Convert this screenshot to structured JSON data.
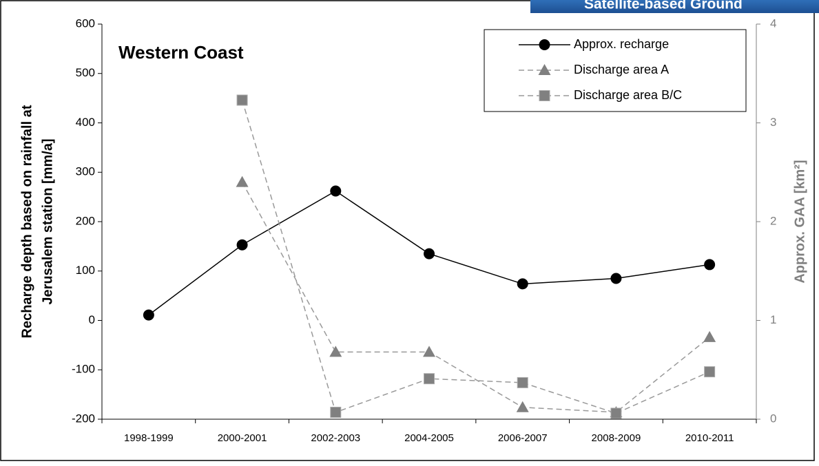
{
  "banner": "Satellite-based Ground",
  "chart_data": {
    "type": "line",
    "title": "Western Coast",
    "ylabel": [
      "Recharge depth based on rainfall at",
      "Jerusalem station [mm/a]"
    ],
    "y2label": "Approx. GAA [km²]",
    "categories": [
      "1998-1999",
      "2000-2001",
      "2002-2003",
      "2004-2005",
      "2006-2007",
      "2008-2009",
      "2010-2011"
    ],
    "series": [
      {
        "name": "Approx. recharge",
        "color": "#000000",
        "marker": "circle",
        "dashed": false,
        "values": [
          11,
          153,
          262,
          135,
          74,
          85,
          113
        ]
      },
      {
        "name": "Discharge area A",
        "color": "#808080",
        "marker": "triangle",
        "dashed": true,
        "axis": "y2",
        "values": [
          null,
          2.4,
          0.68,
          0.68,
          0.12,
          0.07,
          0.83
        ]
      },
      {
        "name": "Discharge area B/C",
        "color": "#808080",
        "marker": "square",
        "dashed": true,
        "axis": "y2",
        "values": [
          null,
          3.23,
          0.07,
          0.41,
          0.37,
          0.06,
          0.48
        ]
      }
    ],
    "ylim": [
      -200,
      600
    ],
    "yticks": [
      -200,
      -100,
      0,
      100,
      200,
      300,
      400,
      500,
      600
    ],
    "y2lim": [
      0,
      4
    ],
    "y2ticks": [
      0,
      1,
      2,
      3,
      4
    ],
    "grid": false,
    "legend": "top right"
  }
}
